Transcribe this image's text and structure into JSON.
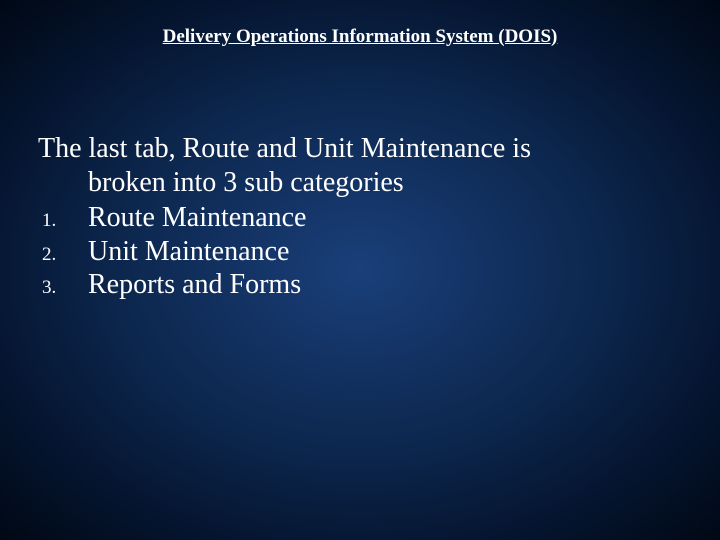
{
  "slide": {
    "background_gradient": [
      "#1a3f7a",
      "#0d2850",
      "#051530",
      "#000814"
    ],
    "text_color": "#ffffff",
    "font_family": "Times New Roman",
    "title": "Delivery Operations Information System (DOIS)",
    "title_fontsize": 19,
    "title_weight": "bold",
    "title_underline": true,
    "intro_line1": "The last tab, Route and Unit Maintenance is",
    "intro_line2": "broken into 3 sub categories",
    "body_fontsize": 28,
    "list_number_fontsize": 19,
    "items": [
      {
        "num": "1.",
        "text": "Route Maintenance"
      },
      {
        "num": "2.",
        "text": "Unit Maintenance"
      },
      {
        "num": "3.",
        "text": "Reports and Forms"
      }
    ]
  }
}
